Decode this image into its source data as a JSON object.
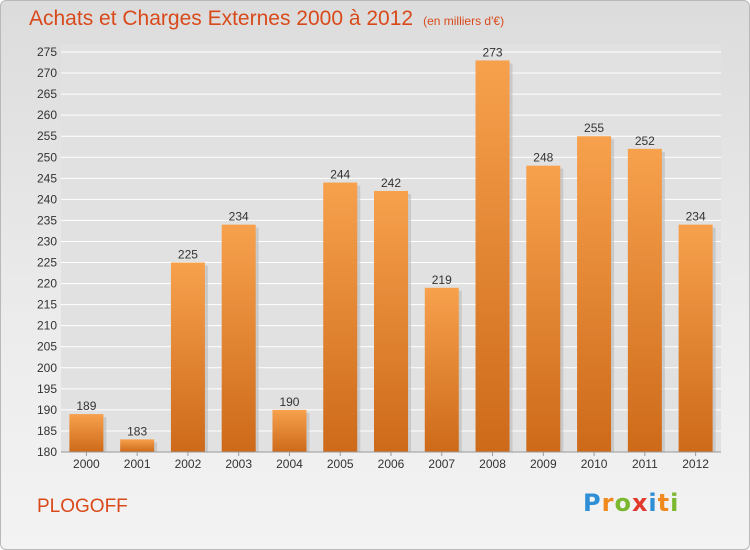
{
  "title": "Achats et Charges Externes 2000 à 2012",
  "unit": "(en milliers d'€)",
  "commune": "PLOGOFF",
  "logo": {
    "letters": [
      "P",
      "r",
      "o",
      "x",
      "i",
      "t",
      "i"
    ],
    "colors": [
      "#2f8fd6",
      "#f08a1e",
      "#7cb82f",
      "#e23b2e",
      "#2f8fd6",
      "#f08a1e",
      "#7cb82f"
    ]
  },
  "colors": {
    "accent": "#d94a1b",
    "bar_top": "#f7a14d",
    "bar_bottom": "#cd6a1a",
    "grid": "#ffffff"
  },
  "chart_data": {
    "type": "bar",
    "title": "Achats et Charges Externes 2000 à 2012",
    "categories": [
      "2000",
      "2001",
      "2002",
      "2003",
      "2004",
      "2005",
      "2006",
      "2007",
      "2008",
      "2009",
      "2010",
      "2011",
      "2012"
    ],
    "values": [
      189,
      183,
      225,
      234,
      190,
      244,
      242,
      219,
      273,
      248,
      255,
      252,
      234
    ],
    "ylim": [
      180,
      275
    ],
    "yticks": [
      180,
      185,
      190,
      195,
      200,
      205,
      210,
      215,
      220,
      225,
      230,
      235,
      240,
      245,
      250,
      255,
      260,
      265,
      270,
      275
    ],
    "grid": true,
    "legend": "none"
  }
}
